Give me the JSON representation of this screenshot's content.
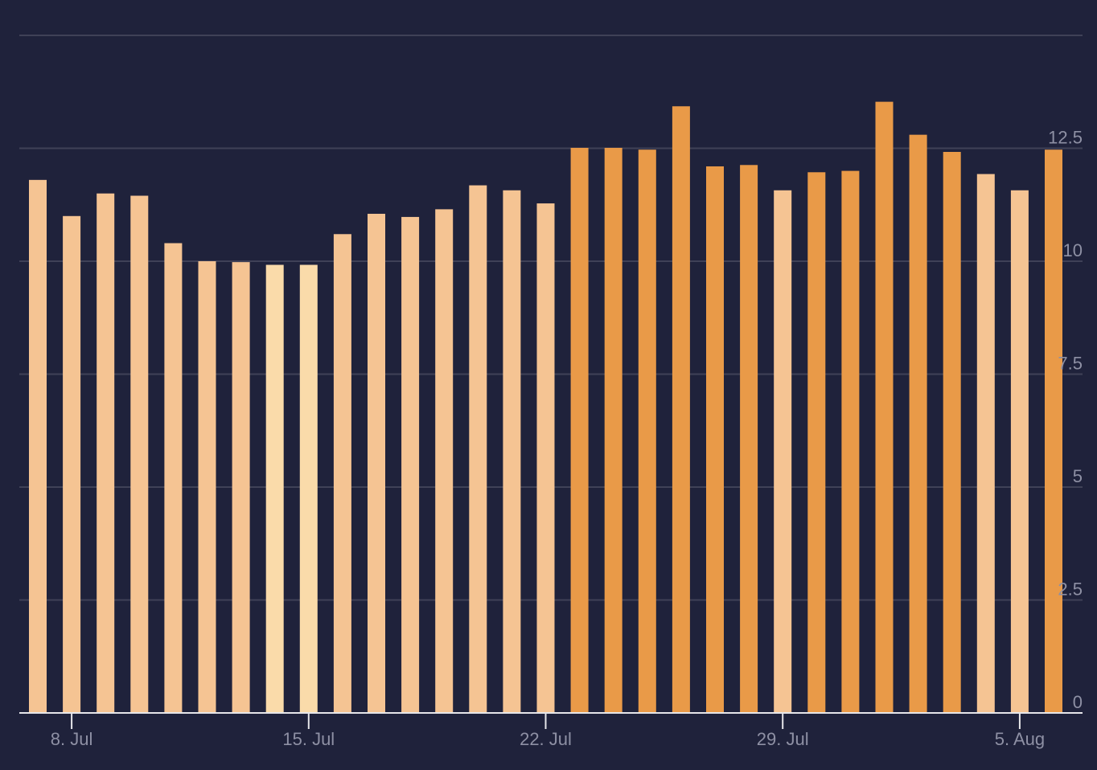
{
  "chart_data": {
    "type": "bar",
    "title": "",
    "xlabel": "",
    "ylabel": "",
    "x": [
      "2024-07-07",
      "2024-07-08",
      "2024-07-09",
      "2024-07-10",
      "2024-07-11",
      "2024-07-12",
      "2024-07-13",
      "2024-07-14",
      "2024-07-15",
      "2024-07-16",
      "2024-07-17",
      "2024-07-18",
      "2024-07-19",
      "2024-07-20",
      "2024-07-21",
      "2024-07-22",
      "2024-07-23",
      "2024-07-24",
      "2024-07-25",
      "2024-07-26",
      "2024-07-27",
      "2024-07-28",
      "2024-07-29",
      "2024-07-30",
      "2024-07-31",
      "2024-08-01",
      "2024-08-02",
      "2024-08-03",
      "2024-08-04",
      "2024-08-05",
      "2024-08-06"
    ],
    "values": [
      11.8,
      11.0,
      11.5,
      11.45,
      10.4,
      10.0,
      9.98,
      9.92,
      9.92,
      10.6,
      11.05,
      10.98,
      11.15,
      11.68,
      11.57,
      11.28,
      12.51,
      12.51,
      12.47,
      13.43,
      12.1,
      12.13,
      11.57,
      11.97,
      12.0,
      13.53,
      12.8,
      12.42,
      11.93,
      11.57,
      12.47
    ],
    "bar_colors": [
      "#f5c493",
      "#f5c493",
      "#f5c493",
      "#f5c493",
      "#f5c493",
      "#f5c493",
      "#f5c493",
      "#fadbaa",
      "#fadbaa",
      "#f5c493",
      "#f5c493",
      "#f5c493",
      "#f5c493",
      "#f5c493",
      "#f5c493",
      "#f5c493",
      "#e99a48",
      "#e99a48",
      "#e99a48",
      "#e99a48",
      "#e99a48",
      "#e99a48",
      "#f5c493",
      "#e99a48",
      "#e99a48",
      "#e99a48",
      "#e99a48",
      "#e99a48",
      "#f5c493",
      "#f5c493",
      "#e99a48"
    ],
    "x_ticks": [
      {
        "date": "2024-07-08",
        "label": "8. Jul"
      },
      {
        "date": "2024-07-15",
        "label": "15. Jul"
      },
      {
        "date": "2024-07-22",
        "label": "22. Jul"
      },
      {
        "date": "2024-07-29",
        "label": "29. Jul"
      },
      {
        "date": "2024-08-05",
        "label": "5. Aug"
      }
    ],
    "y_ticks": [
      {
        "value": 0,
        "label": "0"
      },
      {
        "value": 2.5,
        "label": "2.5"
      },
      {
        "value": 5,
        "label": "5"
      },
      {
        "value": 7.5,
        "label": "7.5"
      },
      {
        "value": 10,
        "label": "10"
      },
      {
        "value": 12.5,
        "label": "12.5"
      },
      {
        "value": 15,
        "label": ""
      }
    ],
    "ylim": [
      0,
      15
    ],
    "y_axis_side": "right",
    "grid": true,
    "legend": "none",
    "colors": {
      "background": "#1f223b",
      "gridline": "#3f4157",
      "axis": "#e6e6ea",
      "tick_label": "#8e90a4"
    }
  }
}
